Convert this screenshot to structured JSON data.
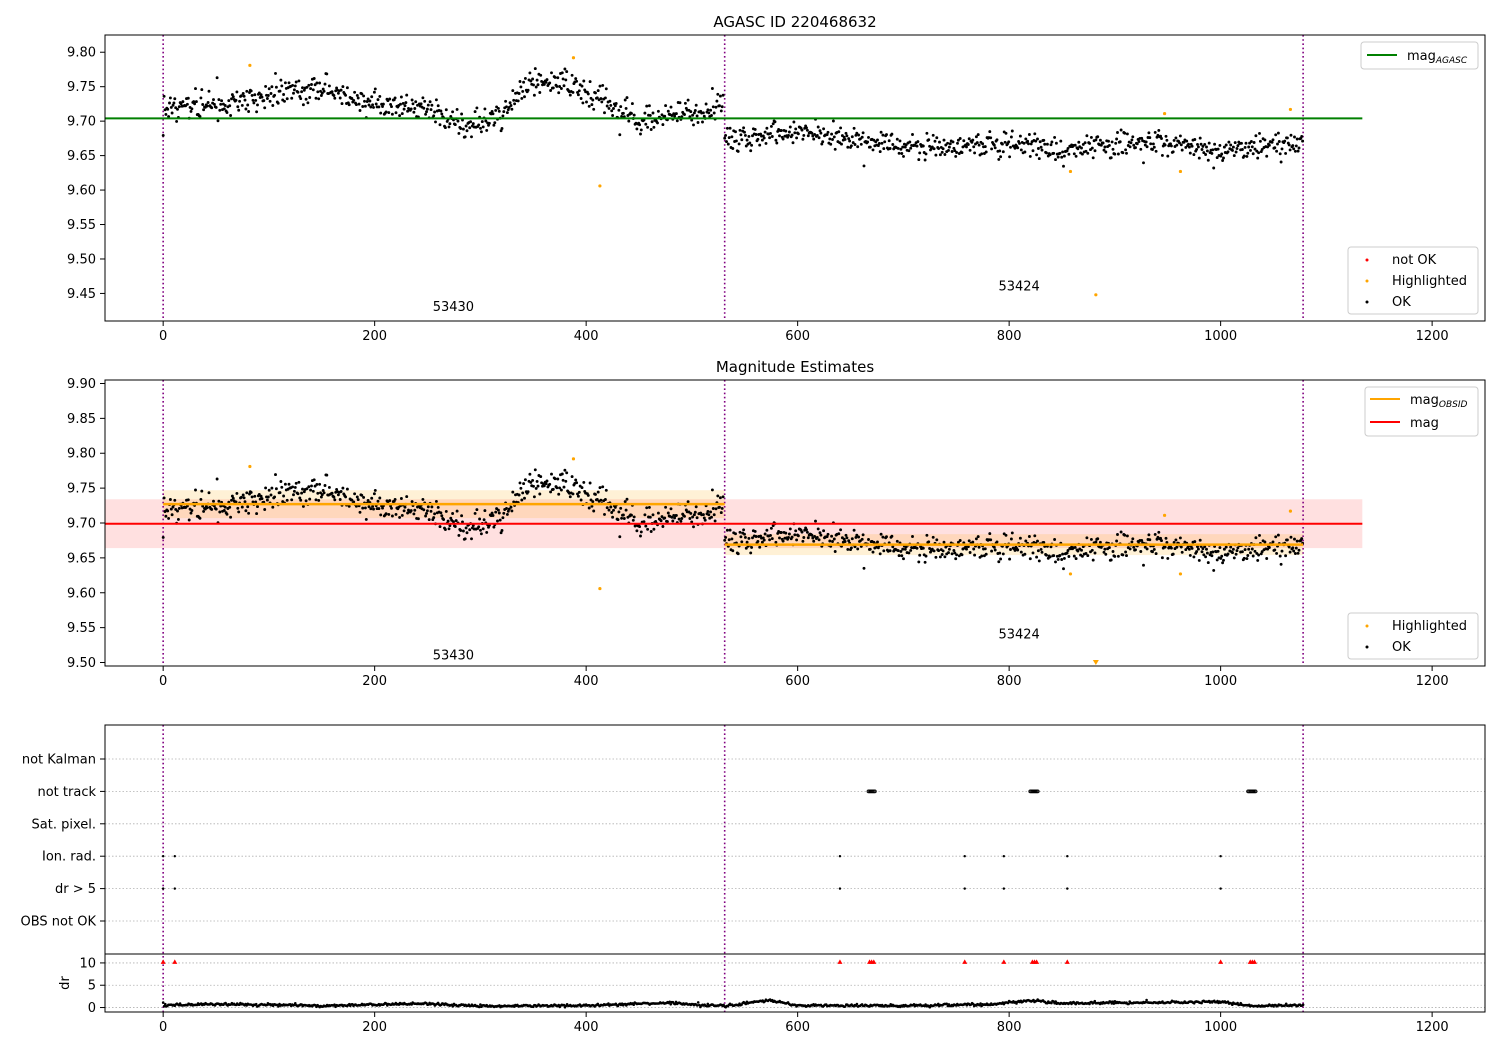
{
  "chart_data": [
    {
      "type": "scatter",
      "title": "AGASC ID 220468632",
      "xlim": [
        -55,
        1250
      ],
      "ylim": [
        9.41,
        9.825
      ],
      "xticks": [
        0,
        200,
        400,
        600,
        800,
        1000,
        1200
      ],
      "yticks": [
        9.45,
        9.5,
        9.55,
        9.6,
        9.65,
        9.7,
        9.75,
        9.8
      ],
      "vlines": [
        0,
        531,
        1078
      ],
      "hline": {
        "label": "mag_AGASC",
        "value": 9.704,
        "xmin": -55,
        "xmax": 1134,
        "color": "#008000"
      },
      "obsid_labels": [
        {
          "text": "53430",
          "x": 265,
          "y": 9.43
        },
        {
          "text": "53424",
          "x": 800,
          "y": 9.46
        }
      ],
      "line_legend": [
        {
          "label": "mag",
          "sub": "AGASC",
          "color": "#008000"
        }
      ],
      "point_legend": [
        {
          "label": "not OK",
          "color": "#ff0000"
        },
        {
          "label": "Highlighted",
          "color": "#ffa500"
        },
        {
          "label": "OK",
          "color": "#000000"
        }
      ],
      "highlighted": [
        [
          82,
          9.781
        ],
        [
          388,
          9.792
        ],
        [
          413,
          9.606
        ],
        [
          858,
          9.627
        ],
        [
          882,
          9.448
        ],
        [
          947,
          9.711
        ],
        [
          962,
          9.627
        ],
        [
          1066,
          9.717
        ]
      ],
      "ok_segments": [
        {
          "from": 0,
          "to": 530,
          "points": [
            [
              0,
              9.721
            ],
            [
              50,
              9.725
            ],
            [
              100,
              9.735
            ],
            [
              140,
              9.748
            ],
            [
              200,
              9.725
            ],
            [
              250,
              9.72
            ],
            [
              290,
              9.692
            ],
            [
              320,
              9.712
            ],
            [
              350,
              9.759
            ],
            [
              380,
              9.755
            ],
            [
              420,
              9.725
            ],
            [
              460,
              9.699
            ],
            [
              500,
              9.715
            ],
            [
              530,
              9.725
            ]
          ],
          "spread": 0.017
        },
        {
          "from": 531,
          "to": 1078,
          "points": [
            [
              531,
              9.675
            ],
            [
              600,
              9.685
            ],
            [
              650,
              9.672
            ],
            [
              700,
              9.662
            ],
            [
              750,
              9.662
            ],
            [
              800,
              9.669
            ],
            [
              850,
              9.658
            ],
            [
              900,
              9.667
            ],
            [
              950,
              9.668
            ],
            [
              1000,
              9.655
            ],
            [
              1040,
              9.668
            ],
            [
              1078,
              9.665
            ]
          ],
          "spread": 0.015
        }
      ]
    },
    {
      "type": "scatter",
      "title": "Magnitude Estimates",
      "xlim": [
        -55,
        1250
      ],
      "ylim": [
        9.495,
        9.905
      ],
      "xticks": [
        0,
        200,
        400,
        600,
        800,
        1000,
        1200
      ],
      "yticks": [
        9.5,
        9.55,
        9.6,
        9.65,
        9.7,
        9.75,
        9.8,
        9.85,
        9.9
      ],
      "vlines": [
        0,
        531,
        1078
      ],
      "mag": {
        "value": 9.699,
        "band": [
          9.664,
          9.734
        ],
        "xmin": -55,
        "xmax": 1134,
        "color": "#ff0000"
      },
      "mag_obsid": [
        {
          "from": 0,
          "to": 531,
          "value": 9.727,
          "band": [
            9.707,
            9.747
          ]
        },
        {
          "from": 531,
          "to": 1078,
          "value": 9.669,
          "band": [
            9.654,
            9.684
          ]
        }
      ],
      "obsid_labels": [
        {
          "text": "53430",
          "x": 265,
          "y": 9.51
        },
        {
          "text": "53424",
          "x": 800,
          "y": 9.54
        }
      ],
      "line_legend": [
        {
          "label": "mag",
          "sub": "OBSID",
          "color": "#ffa500"
        },
        {
          "label": "mag",
          "sub": "",
          "color": "#ff0000"
        }
      ],
      "point_legend": [
        {
          "label": "Highlighted",
          "color": "#ffa500"
        },
        {
          "label": "OK",
          "color": "#000000"
        }
      ],
      "highlighted": [
        [
          82,
          9.781
        ],
        [
          388,
          9.792
        ],
        [
          413,
          9.606
        ],
        [
          858,
          9.627
        ],
        [
          882,
          9.5
        ],
        [
          947,
          9.711
        ],
        [
          962,
          9.627
        ],
        [
          1066,
          9.717
        ]
      ]
    },
    {
      "type": "scatter",
      "title": "",
      "xlim": [
        -55,
        1250
      ],
      "xticks": [
        0,
        200,
        400,
        600,
        800,
        1000,
        1200
      ],
      "vlines": [
        0,
        531,
        1078
      ],
      "flag_rows": [
        "not Kalman",
        "not track",
        "Sat. pixel.",
        "Ion. rad.",
        "dr > 5",
        "OBS not OK"
      ],
      "flags": {
        "not track": [
          [
            667,
            673
          ],
          [
            820,
            827
          ],
          [
            1026,
            1033
          ]
        ],
        "Ion. rad.": [
          [
            0
          ],
          [
            11
          ],
          [
            640
          ],
          [
            758
          ],
          [
            795
          ],
          [
            855
          ],
          [
            1000
          ]
        ],
        "dr > 5": [
          [
            0
          ],
          [
            11
          ],
          [
            640
          ],
          [
            758
          ],
          [
            795
          ],
          [
            855
          ],
          [
            1000
          ]
        ]
      },
      "dr": {
        "ylabel": "dr",
        "ylim": [
          -1,
          12
        ],
        "yticks": [
          0,
          5,
          10
        ],
        "clipped": [
          0,
          11,
          640,
          668,
          670,
          672,
          758,
          795,
          822,
          824,
          826,
          855,
          1000,
          1028,
          1030,
          1032
        ],
        "baseline": [
          [
            0,
            0.5
          ],
          [
            60,
            0.8
          ],
          [
            150,
            0.4
          ],
          [
            250,
            0.9
          ],
          [
            300,
            0.3
          ],
          [
            400,
            0.5
          ],
          [
            480,
            1.1
          ],
          [
            531,
            0.3
          ],
          [
            570,
            1.6
          ],
          [
            600,
            0.5
          ],
          [
            700,
            0.4
          ],
          [
            780,
            0.7
          ],
          [
            820,
            1.6
          ],
          [
            850,
            0.9
          ],
          [
            930,
            1.1
          ],
          [
            1000,
            1.3
          ],
          [
            1030,
            0.3
          ],
          [
            1078,
            0.6
          ]
        ]
      }
    }
  ]
}
